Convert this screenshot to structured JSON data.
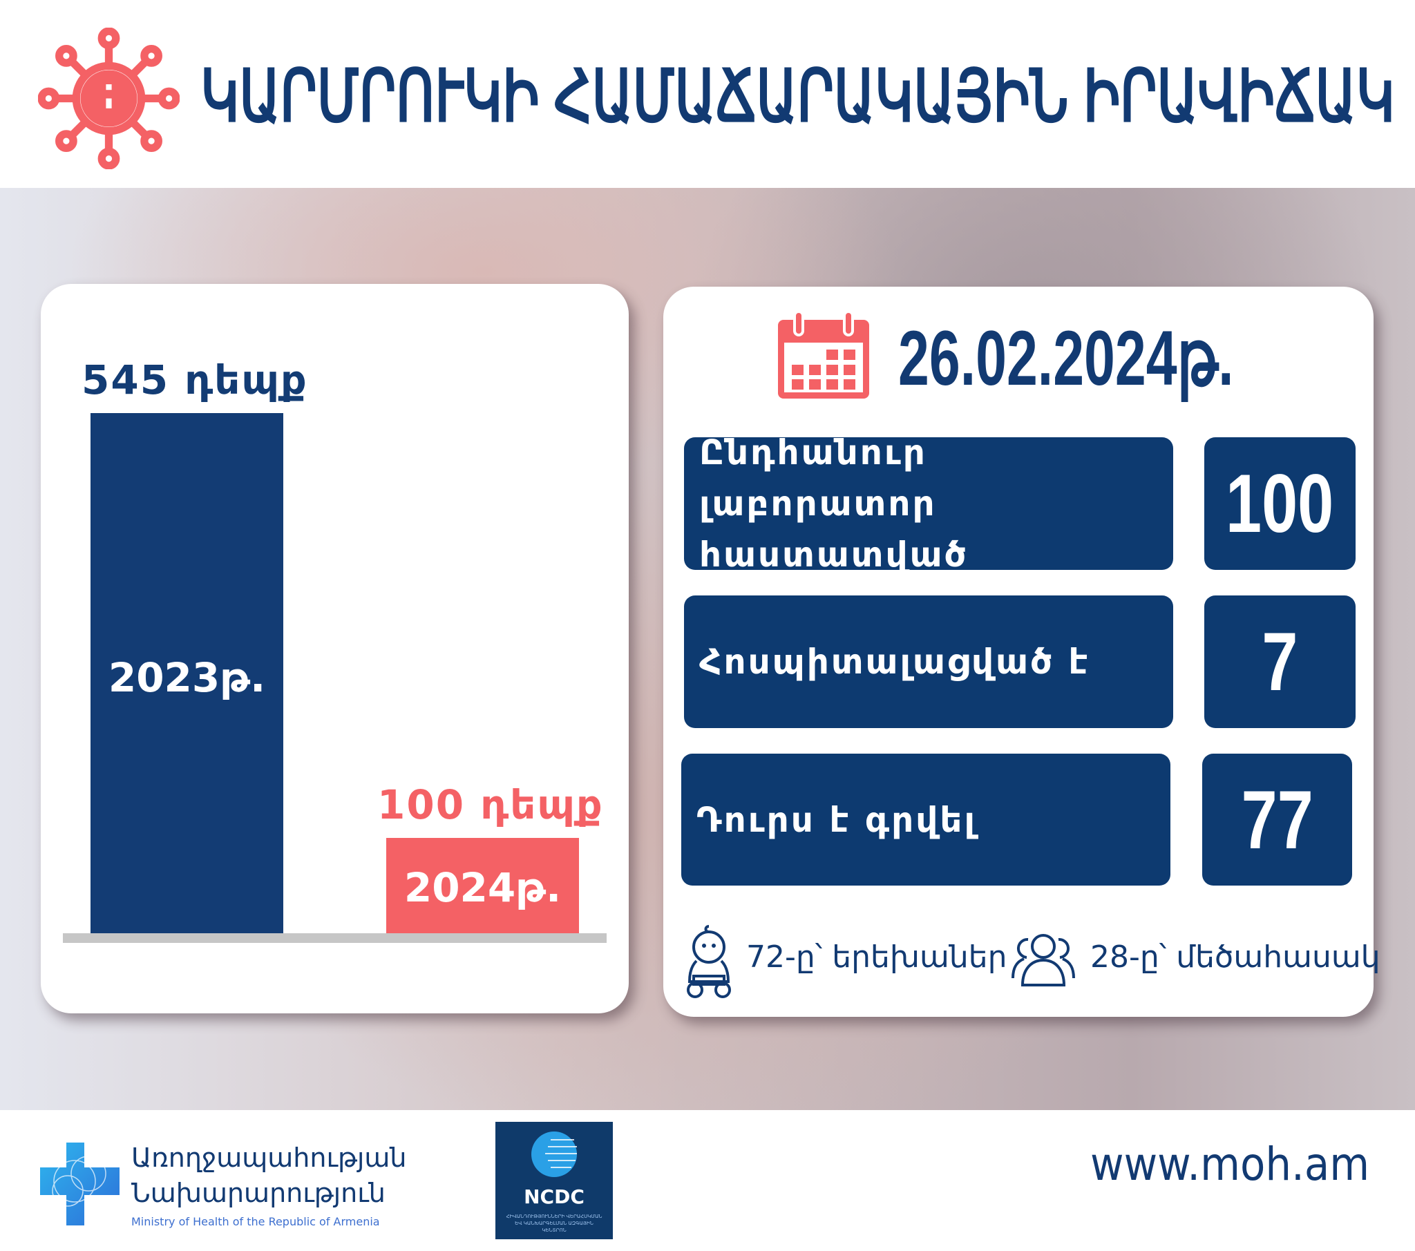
{
  "header": {
    "title": "ԿԱՐՄՐՈՒԿԻ ՀԱՄԱՃԱՐԱԿԱՅԻՆ ԻՐԱՎԻՃԱԿ",
    "icon": "virus-icon",
    "accent": "#f46165",
    "title_color": "#123a72"
  },
  "chart_data": {
    "type": "bar",
    "categories": [
      "2023թ.",
      "2024թ."
    ],
    "values": [
      545,
      100
    ],
    "value_labels": [
      "545 դեպք",
      "100 դեպք"
    ],
    "colors": [
      "#133c74",
      "#f46165"
    ],
    "title": "",
    "xlabel": "",
    "ylabel": "",
    "ylim": [
      0,
      545
    ],
    "grid": false
  },
  "stats": {
    "date": "26.02.2024թ.",
    "date_icon": "calendar-icon",
    "rows": [
      {
        "label": "Ընդհանուր լաբորատոր հաստատված",
        "value": "100"
      },
      {
        "label": "Հոսպիտալացված է",
        "value": "7"
      },
      {
        "label": "Դուրս է գրվել",
        "value": "77"
      }
    ],
    "breakdown": [
      {
        "icon": "baby-icon",
        "text": "72-ը՝ երեխաներ"
      },
      {
        "icon": "group-icon",
        "text": "28-ը՝ մեծահասակ"
      }
    ]
  },
  "footer": {
    "ministry_name_line1": "Առողջապահության",
    "ministry_name_line2": "Նախարարություն",
    "ministry_name_en": "Ministry of Health of the Republic of Armenia",
    "ncdc": "NCDC",
    "ncdc_sub": "ՀԻՎԱՆԴՈՒԹՅՈՒՆՆԵՐԻ ՎԵՐԱՀՍԿՄԱՆ ԵՎ ԿԱՆԽԱՐԳԵԼՄԱՆ ԱԶԳԱՅԻՆ ԿԵՆՏՐՈՆ",
    "website": "www.moh.am"
  }
}
